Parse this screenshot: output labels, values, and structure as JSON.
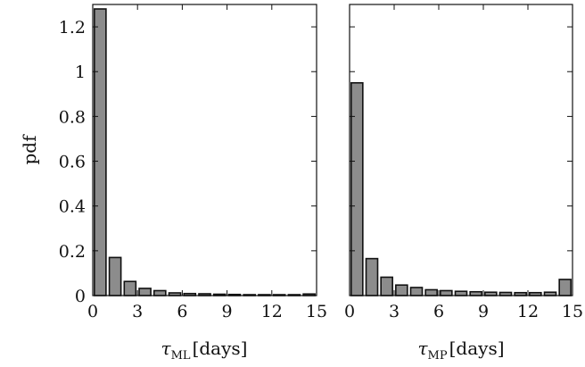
{
  "chart_data": [
    {
      "type": "bar",
      "panel": "left",
      "xlabel_symbol": "τ",
      "xlabel_sub": "ML",
      "xlabel_unit": "[days]",
      "ylabel": "pdf",
      "xlim": [
        0,
        15
      ],
      "ylim": [
        0,
        1.3
      ],
      "xticks": [
        0,
        3,
        6,
        9,
        12,
        15
      ],
      "yticks": [
        0,
        0.2,
        0.4,
        0.6,
        0.8,
        1,
        1.2
      ],
      "ytick_labels": [
        "0",
        "0.2",
        "0.4",
        "0.6",
        "0.8",
        "1",
        "1.2"
      ],
      "bin_width": 1,
      "x": [
        0.5,
        1.5,
        2.5,
        3.5,
        4.5,
        5.5,
        6.5,
        7.5,
        8.5,
        9.5,
        10.5,
        11.5,
        12.5,
        13.5,
        14.5
      ],
      "values": [
        1.28,
        0.17,
        0.063,
        0.032,
        0.022,
        0.012,
        0.009,
        0.008,
        0.006,
        0.005,
        0.004,
        0.004,
        0.004,
        0.004,
        0.007
      ]
    },
    {
      "type": "bar",
      "panel": "right",
      "xlabel_symbol": "τ",
      "xlabel_sub": "MP",
      "xlabel_unit": "[days]",
      "xlim": [
        0,
        15
      ],
      "ylim": [
        0,
        1.3
      ],
      "xticks": [
        0,
        3,
        6,
        9,
        12,
        15
      ],
      "yticks": [
        0,
        0.2,
        0.4,
        0.6,
        0.8,
        1,
        1.2
      ],
      "bin_width": 1,
      "x": [
        0.5,
        1.5,
        2.5,
        3.5,
        4.5,
        5.5,
        6.5,
        7.5,
        8.5,
        9.5,
        10.5,
        11.5,
        12.5,
        13.5,
        14.5
      ],
      "values": [
        0.95,
        0.165,
        0.082,
        0.047,
        0.036,
        0.026,
        0.022,
        0.019,
        0.017,
        0.015,
        0.014,
        0.013,
        0.013,
        0.015,
        0.072
      ]
    }
  ]
}
